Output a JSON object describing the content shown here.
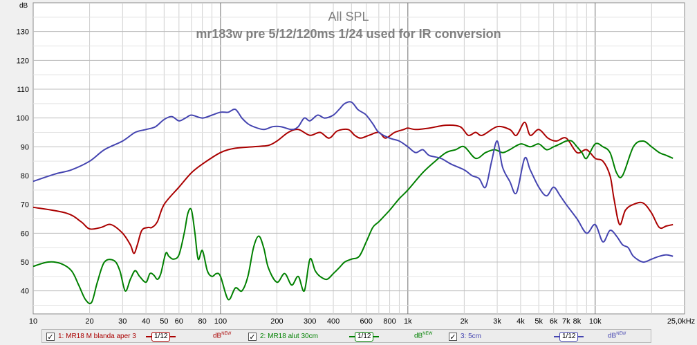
{
  "chart_data": {
    "type": "line",
    "title": "All SPL",
    "subtitle": "mr183w pre 5/12/120ms 1/24 used for IR conversion",
    "ylabel": "dB",
    "x_scale": "log",
    "xlim": [
      10,
      30000
    ],
    "ylim": [
      32,
      140
    ],
    "y_ticks": [
      40,
      50,
      60,
      70,
      80,
      90,
      100,
      110,
      120,
      130
    ],
    "x_ticks": [
      {
        "v": 10,
        "label": "10"
      },
      {
        "v": 20,
        "label": "20"
      },
      {
        "v": 30,
        "label": "30"
      },
      {
        "v": 40,
        "label": "40"
      },
      {
        "v": 50,
        "label": "50"
      },
      {
        "v": 60,
        "label": "60"
      },
      {
        "v": 80,
        "label": "80"
      },
      {
        "v": 100,
        "label": "100"
      },
      {
        "v": 200,
        "label": "200"
      },
      {
        "v": 300,
        "label": "300"
      },
      {
        "v": 400,
        "label": "400"
      },
      {
        "v": 600,
        "label": "600"
      },
      {
        "v": 800,
        "label": "800"
      },
      {
        "v": 1000,
        "label": "1k"
      },
      {
        "v": 2000,
        "label": "2k"
      },
      {
        "v": 3000,
        "label": "3k"
      },
      {
        "v": 4000,
        "label": "4k"
      },
      {
        "v": 5000,
        "label": "5k"
      },
      {
        "v": 6000,
        "label": "6k"
      },
      {
        "v": 7000,
        "label": "7k"
      },
      {
        "v": 8000,
        "label": "8k"
      },
      {
        "v": 10000,
        "label": "10k"
      },
      {
        "v": 25000,
        "label": "25,0kHz"
      }
    ],
    "grid": true,
    "series": [
      {
        "name": "1: MR18 M blanda aper 3",
        "color": "#aa0000",
        "x": [
          10,
          15,
          18,
          20,
          23,
          26,
          30,
          33,
          34.5,
          36,
          38,
          41,
          43,
          46,
          50,
          60,
          70,
          80,
          100,
          120,
          150,
          180,
          200,
          230,
          260,
          300,
          340,
          380,
          420,
          480,
          520,
          560,
          620,
          700,
          760,
          850,
          950,
          1000,
          1100,
          1300,
          1600,
          1900,
          2100,
          2300,
          2500,
          3000,
          3500,
          3800,
          4200,
          4500,
          5000,
          5600,
          6200,
          7000,
          8000,
          9000,
          10000,
          11000,
          12000,
          12600,
          13500,
          14500,
          16000,
          18000,
          20000,
          22000,
          24000,
          26000
        ],
        "y": [
          69,
          67,
          64,
          61.5,
          62,
          63,
          60,
          56,
          53,
          56,
          61,
          62,
          62,
          64,
          70,
          76,
          81,
          84,
          88,
          89.5,
          90,
          90.5,
          92,
          95,
          96,
          94,
          95,
          93,
          95.5,
          96,
          94,
          93,
          94,
          95,
          93,
          95,
          96,
          96.5,
          96,
          96.5,
          97.5,
          97,
          94,
          95,
          94,
          97,
          96,
          94,
          98.5,
          94,
          96,
          93,
          92,
          93,
          88,
          89,
          86,
          85,
          80,
          72,
          63,
          68,
          70,
          70.5,
          67,
          62,
          62.5,
          63
        ]
      },
      {
        "name": "2: MR18 alut 30cm",
        "color": "#008000",
        "x": [
          10,
          12,
          14,
          16,
          17.5,
          19,
          20.5,
          22,
          24,
          27,
          29,
          31,
          33,
          35,
          37,
          40,
          42,
          44,
          46,
          48,
          51,
          53,
          56,
          60,
          64,
          67,
          70,
          73,
          76,
          80,
          85,
          90,
          95,
          100,
          110,
          120,
          130,
          140,
          150,
          160,
          170,
          180,
          200,
          220,
          240,
          260,
          280,
          300,
          320,
          340,
          370,
          400,
          430,
          460,
          500,
          550,
          600,
          650,
          700,
          800,
          900,
          1000,
          1200,
          1400,
          1600,
          1800,
          2000,
          2300,
          2600,
          2900,
          3200,
          3500,
          4000,
          4500,
          5000,
          5500,
          6000,
          6500,
          7000,
          7500,
          8000,
          8500,
          9000,
          10000,
          11000,
          12000,
          13000,
          14000,
          16000,
          18000,
          20000,
          22000,
          24000,
          26000
        ],
        "y": [
          48.5,
          50,
          49.5,
          47,
          42,
          37,
          36,
          43,
          50,
          50.5,
          47,
          40,
          44,
          47,
          45,
          43,
          46,
          45.5,
          44,
          46,
          53,
          52,
          51,
          52.5,
          60,
          67,
          68,
          60,
          51,
          54,
          47,
          45,
          46,
          45,
          37,
          41,
          40,
          45,
          55,
          59,
          55,
          48,
          43,
          46,
          42,
          45,
          40,
          51,
          47,
          45,
          44,
          46,
          48,
          50,
          51,
          52,
          57,
          62,
          64,
          68,
          72,
          75,
          81,
          85,
          88,
          89,
          90,
          86,
          88,
          89,
          88,
          89,
          91,
          90,
          91,
          89,
          90,
          91,
          92,
          92,
          90,
          88,
          86,
          91,
          90,
          88,
          81,
          80,
          90,
          92,
          90,
          88,
          87,
          86
        ]
      },
      {
        "name": "3: 5cm",
        "color": "#4444b0",
        "x": [
          10,
          13,
          16,
          20,
          24,
          30,
          35,
          40,
          45,
          50,
          55,
          60,
          65,
          70,
          80,
          90,
          100,
          110,
          120,
          130,
          140,
          150,
          170,
          190,
          210,
          240,
          260,
          280,
          300,
          330,
          360,
          400,
          430,
          460,
          500,
          540,
          570,
          600,
          650,
          700,
          800,
          900,
          1000,
          1100,
          1200,
          1300,
          1500,
          1700,
          2000,
          2200,
          2400,
          2600,
          2800,
          3000,
          3200,
          3500,
          3800,
          4200,
          4500,
          5000,
          5500,
          6000,
          6500,
          7000,
          8000,
          9000,
          10000,
          11000,
          12000,
          13000,
          14000,
          15000,
          16000,
          18000,
          20000,
          22000,
          24000,
          26000
        ],
        "y": [
          78,
          80.5,
          82,
          85,
          89,
          92,
          95,
          96,
          97,
          99.5,
          100.5,
          99,
          100,
          101,
          100,
          101,
          102,
          102,
          103,
          100,
          98,
          97,
          96,
          97,
          97,
          96,
          97,
          100,
          99,
          101,
          100,
          101,
          103,
          105,
          105.5,
          103,
          102,
          101,
          98,
          95,
          93,
          92,
          90,
          88,
          89,
          87,
          86,
          84,
          82,
          80,
          79,
          76,
          85,
          92,
          83,
          78,
          74,
          86,
          82,
          76,
          73,
          76,
          73,
          70,
          65,
          60,
          63,
          57,
          61,
          59,
          56,
          55,
          52,
          50,
          51,
          52,
          52.5,
          52
        ]
      }
    ]
  },
  "legend": {
    "items": [
      {
        "label": "1: MR18 M blanda aper 3",
        "smoothing": "1/12",
        "unit": "dB",
        "unit_sup": "NEW",
        "color": "#aa0000"
      },
      {
        "label": "2: MR18 alut 30cm",
        "smoothing": "1/12",
        "unit": "dB",
        "unit_sup": "NEW",
        "color": "#008000"
      },
      {
        "label": "3: 5cm",
        "smoothing": "1/12",
        "unit": "dB",
        "unit_sup": "NEW",
        "color": "#4444b0"
      }
    ]
  }
}
